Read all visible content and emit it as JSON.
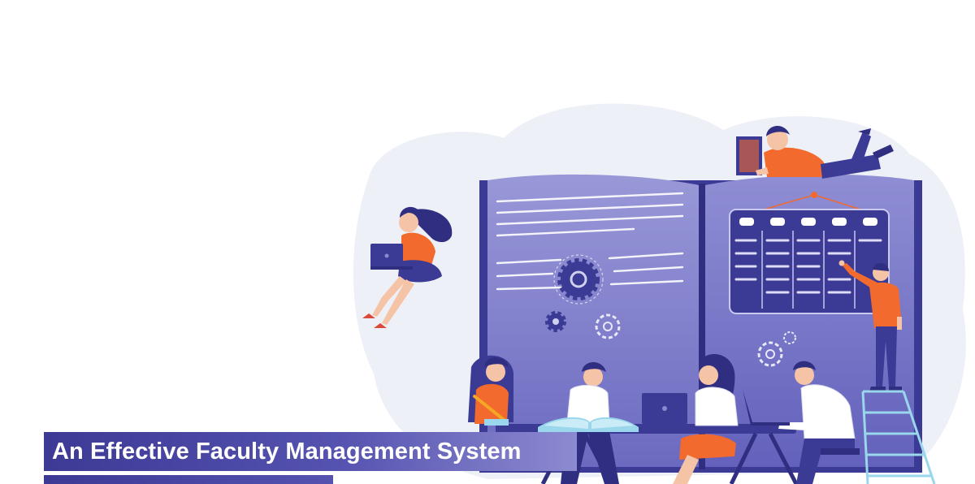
{
  "banner": {
    "title": "An Effective Faculty Management System"
  },
  "colors": {
    "book_dark": "#3b3a94",
    "book_page": "#8b8ad0",
    "accent_orange": "#f26a2e",
    "blob_background": "#eef0f8",
    "banner": "#4a48a3"
  },
  "illustration": {
    "icons": [
      "gear-icon",
      "laptop-icon",
      "open-book-icon",
      "schedule-board-icon",
      "ladder-icon"
    ]
  }
}
